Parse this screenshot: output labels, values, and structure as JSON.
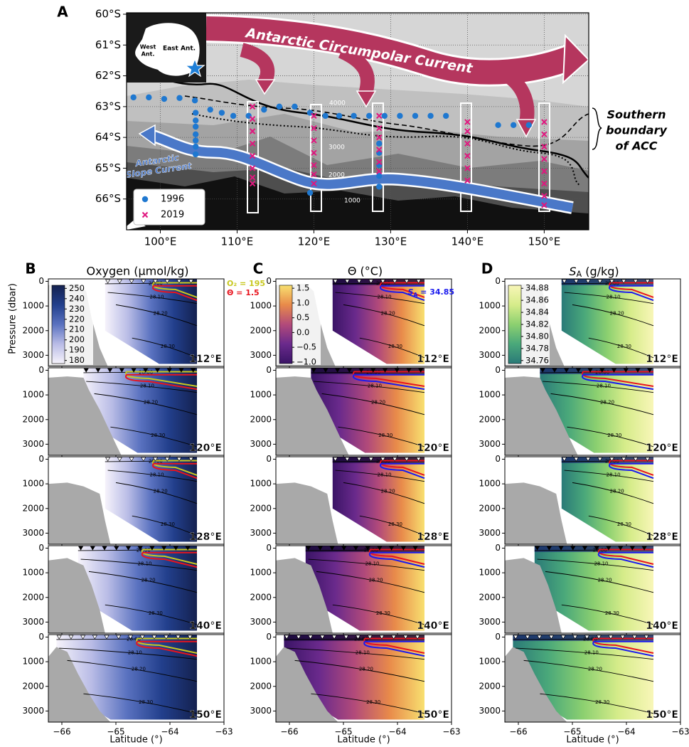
{
  "chart_data": [
    {
      "type": "map",
      "panel_label": "A",
      "xlim": [
        95.6,
        155.8
      ],
      "ylim": [
        -67,
        -60
      ],
      "xticks": [
        {
          "value": 100,
          "label": "100°E"
        },
        {
          "value": 110,
          "label": "110°E"
        },
        {
          "value": 120,
          "label": "120°E"
        },
        {
          "value": 130,
          "label": "130°E"
        },
        {
          "value": 140,
          "label": "140°E"
        },
        {
          "value": 150,
          "label": "150°E"
        }
      ],
      "yticks": [
        {
          "value": -60,
          "label": "60°S"
        },
        {
          "value": -61,
          "label": "61°S"
        },
        {
          "value": -62,
          "label": "62°S"
        },
        {
          "value": -63,
          "label": "63°S"
        },
        {
          "value": -64,
          "label": "64°S"
        },
        {
          "value": -65,
          "label": "65°S"
        },
        {
          "value": -66,
          "label": "66°S"
        }
      ],
      "grid": true,
      "legend": "lower left",
      "annotations": {
        "acc": "Antarctic Circumpolar Current",
        "asc": [
          "Antarctic",
          "Slope Current"
        ],
        "boundary": [
          "Southern",
          "boundary",
          "of ACC"
        ],
        "west": [
          "West",
          "Ant."
        ],
        "east": "East Ant."
      },
      "contour_labels": [
        "4000",
        "3000",
        "2000",
        "1000"
      ],
      "series": [
        {
          "name": "1996",
          "color": "#1f78d0",
          "marker": "o",
          "x": [
            96.5,
            98.5,
            100.5,
            102.5,
            104.5,
            104.6,
            104.6,
            104.6,
            104.6,
            104.6,
            104.6,
            104.6,
            106.5,
            108,
            109.5,
            111.5,
            113.5,
            115.5,
            117.5,
            119.5,
            121.5,
            123.3,
            125.2,
            127.2,
            129.2,
            131.2,
            133.2,
            135.2,
            137.2,
            144,
            146,
            148,
            128.5,
            128.5,
            128.5,
            128.5,
            128.5,
            119.5
          ],
          "y": [
            -62.7,
            -62.7,
            -62.75,
            -62.72,
            -62.8,
            -63.2,
            -63.45,
            -63.65,
            -63.9,
            -64.1,
            -64.3,
            -64.55,
            -63.1,
            -63.2,
            -63.3,
            -63.3,
            -63.1,
            -63.0,
            -63.0,
            -63.2,
            -63.3,
            -63.3,
            -63.3,
            -63.3,
            -63.3,
            -63.3,
            -63.3,
            -63.3,
            -63.3,
            -63.6,
            -63.6,
            -63.6,
            -64.2,
            -64.5,
            -64.9,
            -65.25,
            -65.6,
            -65.8
          ]
        },
        {
          "name": "2019",
          "color": "#e0177f",
          "marker": "x",
          "x": [
            112,
            112,
            112,
            112,
            112,
            112,
            112,
            112,
            120,
            120,
            120,
            120,
            120,
            120,
            120,
            128.5,
            128.5,
            128.5,
            128.5,
            128.5,
            128.5,
            140,
            140,
            140,
            140,
            140,
            140,
            150,
            150,
            150,
            150,
            150,
            150,
            150,
            150
          ],
          "y": [
            -63.0,
            -63.4,
            -63.8,
            -64.2,
            -64.6,
            -65.0,
            -65.3,
            -65.5,
            -63.3,
            -63.7,
            -64.1,
            -64.5,
            -64.9,
            -65.2,
            -65.5,
            -63.3,
            -63.7,
            -64.0,
            -64.4,
            -64.8,
            -65.1,
            -63.5,
            -63.8,
            -64.2,
            -64.6,
            -65.0,
            -65.4,
            -63.5,
            -63.9,
            -64.3,
            -64.7,
            -65.1,
            -65.5,
            -65.9,
            -66.2
          ]
        }
      ]
    },
    {
      "type": "section",
      "panel_label": "B",
      "title": "Oxygen (µmol/kg)",
      "ylabel": "Pressure (dbar)",
      "xlabel": "Latitude (°)",
      "xlim": [
        -66.25,
        -63
      ],
      "xticks": [
        {
          "value": -66,
          "label": "−66"
        },
        {
          "value": -65,
          "label": "−65"
        },
        {
          "value": -64,
          "label": "−64"
        },
        {
          "value": -63,
          "label": "−63"
        }
      ],
      "ylim": [
        3450,
        -100
      ],
      "yticks": [
        0,
        1000,
        2000,
        3000
      ],
      "colors": [
        "#f6f3fb",
        "#b9bce6",
        "#5a72c0",
        "#223f8c",
        "#14214f"
      ],
      "colorbar": {
        "lim": [
          177,
          253
        ],
        "ticks": [
          180,
          190,
          200,
          210,
          220,
          230,
          240,
          250
        ]
      },
      "isopycnal_labels": [
        "28.00",
        "28.10",
        "28.20",
        "28.30"
      ],
      "longitudes": [
        "112°E",
        "120°E",
        "128°E",
        "140°E",
        "150°E"
      ],
      "contours": [
        {
          "label": "O₂ = 195",
          "color": "#c8c820"
        },
        {
          "label": "Θ = 1.5",
          "color": "#e8141e"
        }
      ]
    },
    {
      "type": "section",
      "panel_label": "C",
      "title": "Θ (°C)",
      "xlabel": "Latitude (°)",
      "xlim": [
        -66.25,
        -63
      ],
      "xticks": [
        {
          "value": -66,
          "label": "−66"
        },
        {
          "value": -65,
          "label": "−65"
        },
        {
          "value": -64,
          "label": "−64"
        },
        {
          "value": -63,
          "label": "−63"
        }
      ],
      "ylim": [
        3450,
        -100
      ],
      "yticks": [
        0,
        1000,
        2000,
        3000
      ],
      "colors": [
        "#3a1466",
        "#6a2a8c",
        "#b24a7a",
        "#e88a4a",
        "#f8e070"
      ],
      "colorbar": {
        "lim": [
          -1.05,
          1.6
        ],
        "ticks": [
          {
            "value": -1,
            "label": "−1.0"
          },
          {
            "value": -0.5,
            "label": "−0.5"
          },
          {
            "value": 0,
            "label": "0.0"
          },
          0.5,
          {
            "value": 1,
            "label": "1.0"
          },
          1.5
        ]
      },
      "isopycnal_labels": [
        "28.00",
        "28.10",
        "28.20",
        "28.30"
      ],
      "longitudes": [
        "112°E",
        "120°E",
        "128°E",
        "140°E",
        "150°E"
      ],
      "contours": [
        {
          "color": "#e8141e"
        },
        {
          "label": {
            "symbol": "S",
            "sub": "A",
            "text": " = 34.85"
          },
          "color": "#1a1aee"
        }
      ]
    },
    {
      "type": "section",
      "panel_label": "D",
      "title": {
        "symbol": "S",
        "sub": "A",
        "text": " (g/kg)"
      },
      "xlabel": "Latitude (°)",
      "xlim": [
        -66.25,
        -63
      ],
      "xticks": [
        {
          "value": -66,
          "label": "−66"
        },
        {
          "value": -65,
          "label": "−65"
        },
        {
          "value": -64,
          "label": "−64"
        },
        {
          "value": -63,
          "label": "−63"
        }
      ],
      "ylim": [
        3450,
        -100
      ],
      "yticks": [
        0,
        1000,
        2000,
        3000
      ],
      "colors": [
        "#2a7a78",
        "#4aa87a",
        "#8cd070",
        "#d6ec8a",
        "#f8f6b8"
      ],
      "colorbar": {
        "lim": [
          34.755,
          34.885
        ],
        "ticks": [
          34.76,
          34.78,
          {
            "value": 34.8,
            "label": "34.80"
          },
          34.82,
          34.84,
          34.86,
          34.88
        ]
      },
      "isopycnal_labels": [
        "28.00",
        "28.10",
        "28.20",
        "28.30"
      ],
      "longitudes": [
        "112°E",
        "120°E",
        "128°E",
        "140°E",
        "150°E"
      ],
      "contours": [
        {
          "color": "#e8141e"
        },
        {
          "color": "#1a1aee"
        }
      ]
    }
  ]
}
